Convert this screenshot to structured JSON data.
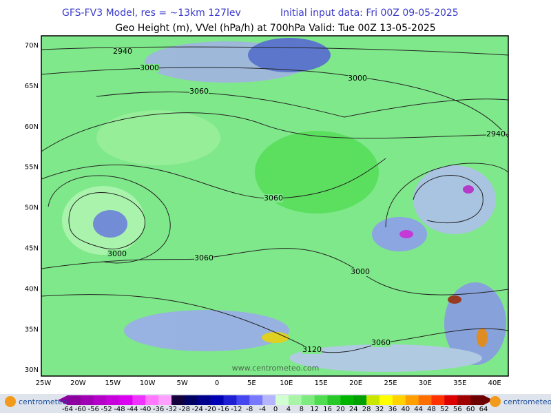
{
  "header": {
    "model": "GFS-FV3 Model, res = ~13km 127lev",
    "init": "Initial input data: Fri 00Z 09-05-2025",
    "subtitle": "Geo Height (m), VVel (hPa/h) at 700hPa  Valid: Tue 00Z 13-05-2025"
  },
  "map": {
    "lat_labels": [
      "70N",
      "65N",
      "60N",
      "55N",
      "50N",
      "45N",
      "40N",
      "35N",
      "30N"
    ],
    "lon_labels": [
      "25W",
      "20W",
      "15W",
      "10W",
      "5W",
      "0",
      "5E",
      "10E",
      "15E",
      "20E",
      "25E",
      "30E",
      "35E",
      "40E"
    ],
    "contour_labels": [
      "2940",
      "3000",
      "3060",
      "3000",
      "2940",
      "3060",
      "3000",
      "3060",
      "3000",
      "3060",
      "3120"
    ],
    "watermark": "www.centrometeo.com"
  },
  "colorbar": {
    "labels": [
      -64,
      -60,
      -56,
      -52,
      -48,
      -44,
      -40,
      -36,
      -32,
      -28,
      -24,
      -20,
      -16,
      -12,
      -8,
      -4,
      0,
      4,
      8,
      12,
      16,
      20,
      24,
      28,
      32,
      36,
      40,
      44,
      48,
      52,
      56,
      60,
      64
    ],
    "colors": [
      "#8c00a0",
      "#a000b4",
      "#b400c8",
      "#c800dc",
      "#dc00f0",
      "#f032ff",
      "#ff78ff",
      "#ffa0ff",
      "#14003c",
      "#000064",
      "#00008c",
      "#0000b4",
      "#1e1ed2",
      "#4646f0",
      "#7878ff",
      "#b4b4ff",
      "#d2ffd2",
      "#a8f5a8",
      "#7deb7d",
      "#50dc50",
      "#28c828",
      "#00b400",
      "#00a000",
      "#c8e600",
      "#ffff00",
      "#ffd200",
      "#ffa000",
      "#ff6e00",
      "#ff3200",
      "#dc0000",
      "#a00000",
      "#6e0000"
    ]
  },
  "logos": {
    "left": "centrometeo",
    "right": "centrometeo"
  }
}
